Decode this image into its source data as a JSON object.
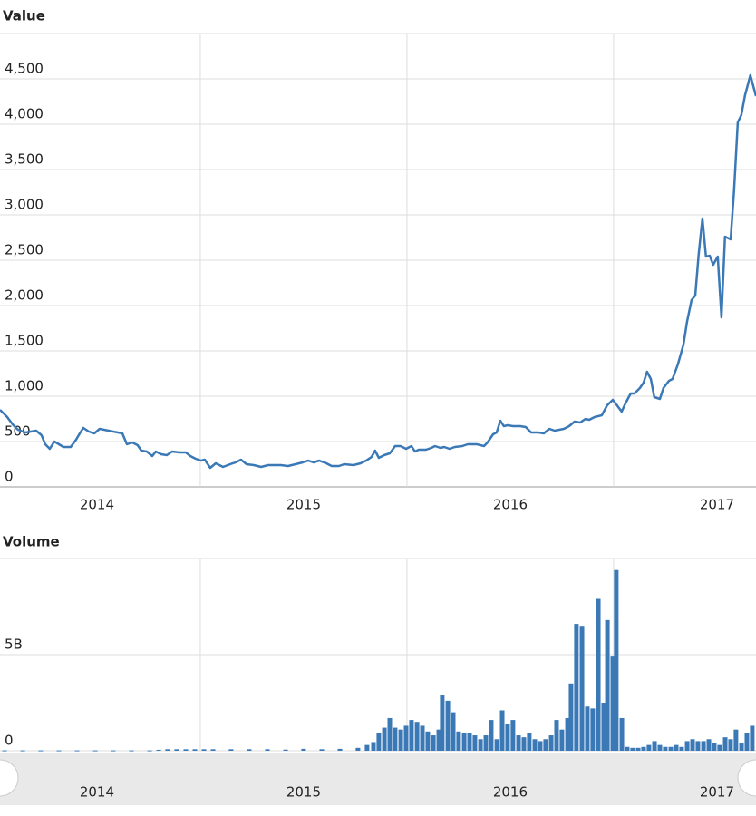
{
  "chart_data": [
    {
      "type": "line",
      "title": "Value",
      "color": "#3b79b6",
      "grid": true,
      "xlim": [
        2014.031,
        2017.689
      ],
      "xticks": [
        2014,
        2015,
        2016,
        2017
      ],
      "ylim": [
        0,
        5000
      ],
      "yticks": [
        0,
        500,
        {
          "value": 1000,
          "label": "1,000"
        },
        {
          "value": 1500,
          "label": "1,500"
        },
        {
          "value": 2000,
          "label": "2,000"
        },
        {
          "value": 2500,
          "label": "2,500"
        },
        {
          "value": 3000,
          "label": "3,000"
        },
        {
          "value": 3500,
          "label": "3,500"
        },
        {
          "value": 4000,
          "label": "4,000"
        },
        {
          "value": 4500,
          "label": "4,500"
        }
      ],
      "x": [
        2014.031,
        2014.066,
        2014.092,
        2014.118,
        2014.154,
        2014.206,
        2014.232,
        2014.25,
        2014.272,
        2014.294,
        2014.316,
        2014.338,
        2014.373,
        2014.399,
        2014.417,
        2014.434,
        2014.461,
        2014.487,
        2014.513,
        2014.557,
        2014.601,
        2014.623,
        2014.645,
        2014.671,
        2014.697,
        2014.715,
        2014.741,
        2014.768,
        2014.785,
        2014.811,
        2014.838,
        2014.864,
        2014.899,
        2014.93,
        2014.952,
        2014.978,
        2015.004,
        2015.022,
        2015.048,
        2015.075,
        2015.11,
        2015.145,
        2015.171,
        2015.197,
        2015.224,
        2015.259,
        2015.294,
        2015.329,
        2015.39,
        2015.425,
        2015.461,
        2015.496,
        2015.522,
        2015.548,
        2015.575,
        2015.61,
        2015.636,
        2015.671,
        2015.697,
        2015.741,
        2015.776,
        2015.803,
        2015.829,
        2015.846,
        2015.864,
        2015.89,
        2015.917,
        2015.943,
        2015.969,
        2015.996,
        2016.022,
        2016.039,
        2016.057,
        2016.092,
        2016.118,
        2016.136,
        2016.162,
        2016.18,
        2016.206,
        2016.232,
        2016.268,
        2016.294,
        2016.338,
        2016.373,
        2016.39,
        2016.417,
        2016.434,
        2016.452,
        2016.469,
        2016.487,
        2016.513,
        2016.548,
        2016.575,
        2016.601,
        2016.636,
        2016.662,
        2016.689,
        2016.715,
        2016.759,
        2016.785,
        2016.811,
        2016.838,
        2016.864,
        2016.882,
        2016.908,
        2016.943,
        2016.969,
        2016.996,
        2017.013,
        2017.039,
        2017.057,
        2017.083,
        2017.101,
        2017.127,
        2017.145,
        2017.162,
        2017.18,
        2017.197,
        2017.224,
        2017.241,
        2017.268,
        2017.285,
        2017.311,
        2017.338,
        2017.355,
        2017.377,
        2017.395,
        2017.412,
        2017.43,
        2017.447,
        2017.465,
        2017.482,
        2017.504,
        2017.522,
        2017.539,
        2017.566,
        2017.583,
        2017.601,
        2017.618,
        2017.636,
        2017.662,
        2017.689
      ],
      "values": [
        850,
        770,
        690,
        630,
        600,
        620,
        570,
        470,
        420,
        500,
        470,
        440,
        440,
        520,
        590,
        650,
        610,
        590,
        640,
        620,
        600,
        590,
        470,
        490,
        460,
        400,
        390,
        340,
        390,
        360,
        350,
        390,
        380,
        380,
        340,
        310,
        290,
        300,
        210,
        260,
        220,
        250,
        270,
        300,
        250,
        240,
        220,
        240,
        240,
        230,
        250,
        270,
        290,
        270,
        290,
        260,
        230,
        230,
        250,
        240,
        260,
        290,
        330,
        400,
        320,
        350,
        370,
        450,
        450,
        420,
        450,
        390,
        410,
        410,
        430,
        450,
        430,
        440,
        420,
        440,
        450,
        470,
        470,
        450,
        490,
        580,
        600,
        730,
        670,
        680,
        670,
        670,
        660,
        600,
        600,
        590,
        640,
        620,
        640,
        670,
        720,
        710,
        750,
        740,
        770,
        790,
        900,
        960,
        910,
        830,
        920,
        1030,
        1030,
        1090,
        1150,
        1270,
        1190,
        990,
        970,
        1090,
        1170,
        1190,
        1350,
        1570,
        1820,
        2060,
        2110,
        2570,
        2960,
        2540,
        2550,
        2450,
        2540,
        1870,
        2760,
        2730,
        3270,
        4020,
        4100,
        4320,
        4540,
        4310
      ]
    },
    {
      "type": "bar",
      "title": "Volume",
      "color": "#3b79b6",
      "grid": true,
      "xlim": [
        2014.031,
        2017.689
      ],
      "xticks": [
        2014,
        2015,
        2016,
        2017
      ],
      "ylim": [
        0,
        10000000000
      ],
      "yticks": [
        0,
        {
          "value": 5000000000,
          "label": "5B"
        }
      ],
      "x": [
        2014.053,
        2014.141,
        2014.228,
        2014.316,
        2014.404,
        2014.492,
        2014.579,
        2014.667,
        2014.755,
        2014.799,
        2014.842,
        2014.886,
        2014.93,
        2014.974,
        2015.018,
        2015.062,
        2015.149,
        2015.237,
        2015.325,
        2015.413,
        2015.5,
        2015.588,
        2015.676,
        2015.763,
        2015.807,
        2015.838,
        2015.864,
        2015.891,
        2015.917,
        2015.943,
        2015.97,
        2015.996,
        2016.022,
        2016.049,
        2016.075,
        2016.101,
        2016.128,
        2016.154,
        2016.171,
        2016.198,
        2016.224,
        2016.25,
        2016.277,
        2016.303,
        2016.329,
        2016.356,
        2016.382,
        2016.408,
        2016.435,
        2016.461,
        2016.487,
        2016.513,
        2016.54,
        2016.566,
        2016.592,
        2016.619,
        2016.645,
        2016.671,
        2016.698,
        2016.724,
        2016.75,
        2016.777,
        2016.794,
        2016.82,
        2016.847,
        2016.873,
        2016.899,
        2016.926,
        2016.952,
        2016.97,
        2016.996,
        2017.013,
        2017.04,
        2017.066,
        2017.092,
        2017.119,
        2017.145,
        2017.171,
        2017.198,
        2017.224,
        2017.25,
        2017.277,
        2017.303,
        2017.329,
        2017.356,
        2017.382,
        2017.408,
        2017.435,
        2017.461,
        2017.487,
        2017.513,
        2017.54,
        2017.566,
        2017.592,
        2017.619,
        2017.645,
        2017.671
      ],
      "values": [
        20000000,
        20000000,
        20000000,
        20000000,
        20000000,
        20000000,
        20000000,
        20000000,
        20000000,
        50000000,
        80000000,
        80000000,
        80000000,
        80000000,
        80000000,
        80000000,
        80000000,
        80000000,
        80000000,
        60000000,
        100000000,
        80000000,
        100000000,
        150000000,
        300000000,
        450000000,
        900000000,
        1200000000,
        1700000000,
        1200000000,
        1100000000,
        1300000000,
        1600000000,
        1500000000,
        1300000000,
        1000000000,
        800000000,
        1100000000,
        2900000000,
        2600000000,
        2000000000,
        1000000000,
        900000000,
        900000000,
        800000000,
        600000000,
        800000000,
        1600000000,
        600000000,
        2100000000,
        1400000000,
        1600000000,
        800000000,
        700000000,
        900000000,
        600000000,
        500000000,
        600000000,
        800000000,
        1600000000,
        1100000000,
        1700000000,
        3500000000,
        6600000000,
        6500000000,
        2300000000,
        2200000000,
        7900000000,
        2500000000,
        6800000000,
        4900000000,
        9400000000,
        1700000000,
        200000000,
        150000000,
        150000000,
        200000000,
        300000000,
        500000000,
        300000000,
        200000000,
        200000000,
        300000000,
        200000000,
        500000000,
        600000000,
        500000000,
        500000000,
        600000000,
        400000000,
        300000000,
        700000000,
        600000000,
        1100000000,
        400000000,
        900000000,
        1300000000
      ]
    }
  ]
}
